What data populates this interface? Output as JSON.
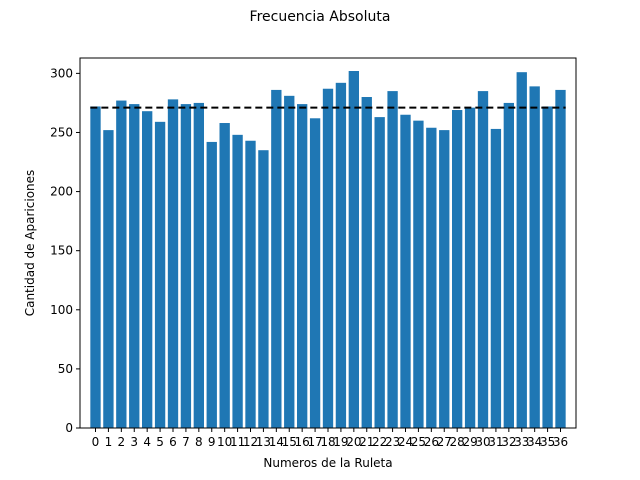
{
  "chart_data": {
    "type": "bar",
    "title": "Frecuencia Absoluta",
    "xlabel": "Numeros de la Ruleta",
    "ylabel": "Cantidad de Apariciones",
    "categories": [
      "0",
      "1",
      "2",
      "3",
      "4",
      "5",
      "6",
      "7",
      "8",
      "9",
      "10",
      "11",
      "12",
      "13",
      "14",
      "15",
      "16",
      "17",
      "18",
      "19",
      "20",
      "21",
      "22",
      "23",
      "24",
      "25",
      "26",
      "27",
      "28",
      "29",
      "30",
      "31",
      "32",
      "33",
      "34",
      "35",
      "36"
    ],
    "values": [
      272,
      252,
      277,
      274,
      268,
      259,
      278,
      274,
      275,
      242,
      258,
      248,
      243,
      235,
      286,
      281,
      274,
      262,
      287,
      292,
      302,
      280,
      263,
      285,
      265,
      260,
      254,
      252,
      269,
      271,
      285,
      253,
      275,
      301,
      289,
      272,
      286
    ],
    "mean_line": 271,
    "ylim": [
      0,
      313
    ],
    "yticks": [
      0,
      50,
      100,
      150,
      200,
      250,
      300
    ],
    "grid": false,
    "colors": {
      "bar": "#1f77b4",
      "mean_line": "#000000",
      "axes": "#000000"
    }
  }
}
